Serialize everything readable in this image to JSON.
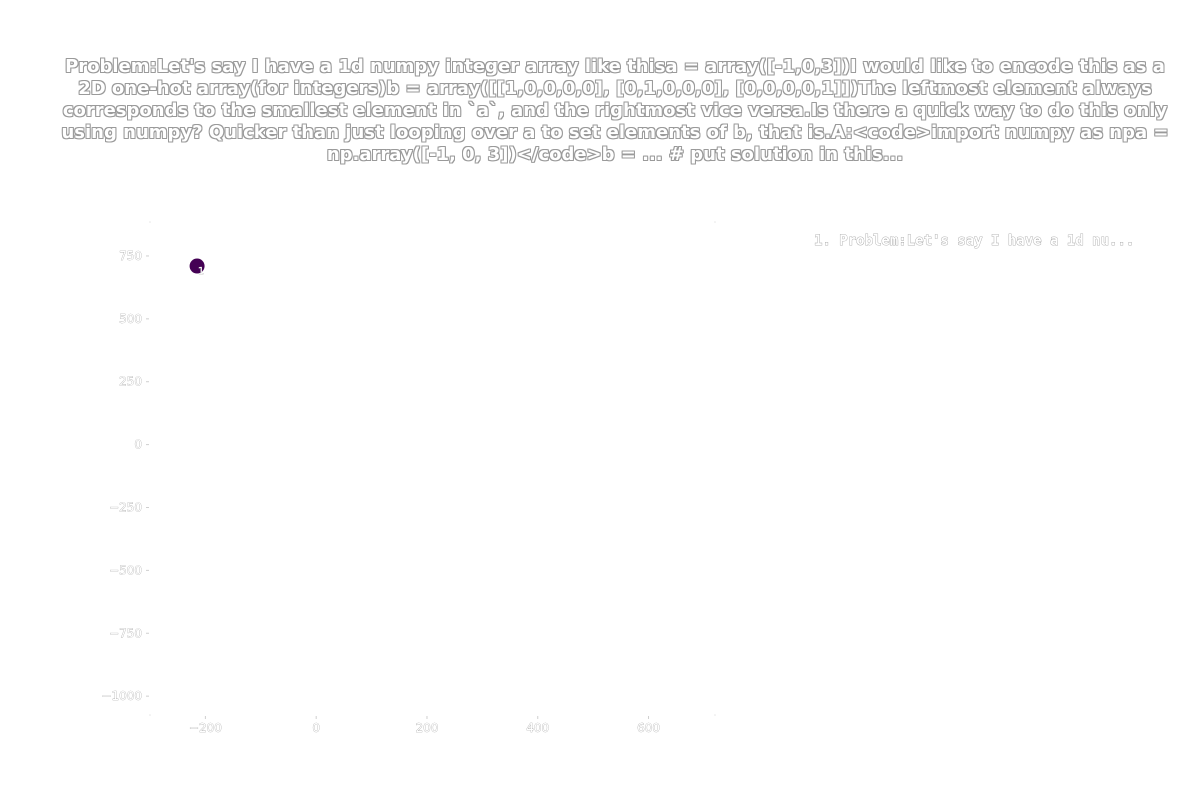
{
  "chart_data": {
    "type": "scatter",
    "title": "Problem:Let's say I have a 1d numpy integer array like thisa = array([-1,0,3])I would like to encode this as a 2D one-hot array(for integers)b = array([[1,0,0,0,0], [0,1,0,0,0], [0,0,0,0,1]])The leftmost element always corresponds to the smallest element in `a`, and the rightmost vice versa.Is there a quick way to do this only using numpy? Quicker than just looping over a to set elements of b, that is.A:<code>import numpy as npa = np.array([-1, 0, 3])</code>b = ... # put solution in this...",
    "xlabel": "",
    "ylabel": "",
    "xlim": [
      -300,
      720
    ],
    "ylim": [
      -1075,
      885
    ],
    "x_ticks": [
      -200,
      0,
      200,
      400,
      600
    ],
    "y_ticks": [
      -1000,
      -750,
      -500,
      -250,
      0,
      250,
      500,
      750
    ],
    "x_tick_labels": [
      "−200",
      "0",
      "200",
      "400",
      "600"
    ],
    "y_tick_labels": [
      "−1000",
      "−750",
      "−500",
      "−250",
      "0",
      "250",
      "500",
      "750"
    ],
    "grid": false,
    "legend_position": "top-right",
    "legend": [
      "1. Problem:Let's say I have a 1d nu..."
    ],
    "series": [
      {
        "name": "1. Problem:Let's say I have a 1d nu...",
        "color": "#440154",
        "points": [
          {
            "x": -215,
            "y": 710,
            "label": "1"
          }
        ]
      }
    ]
  }
}
